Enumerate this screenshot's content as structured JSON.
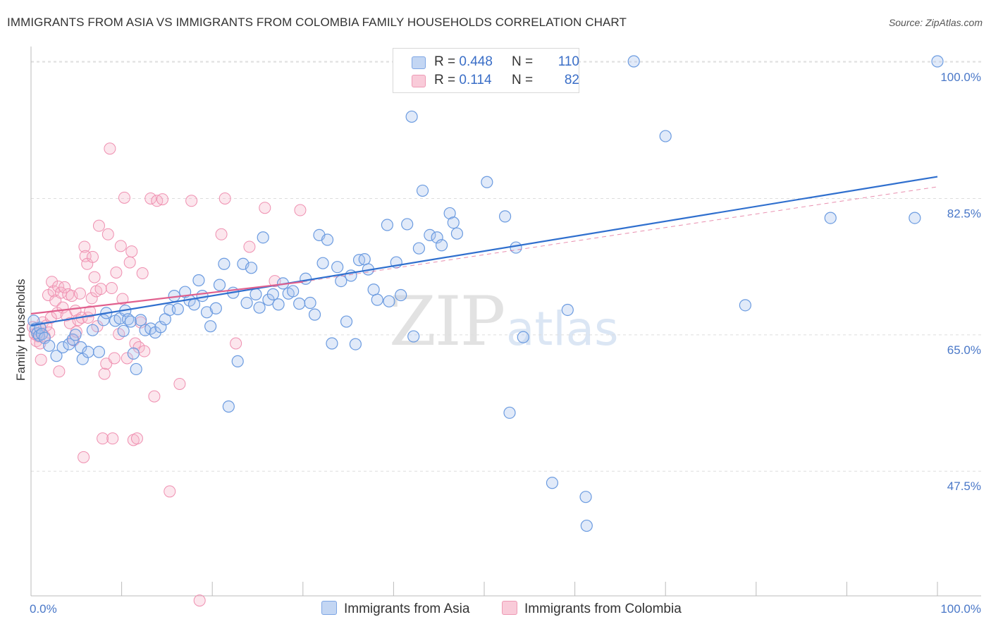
{
  "title": "IMMIGRANTS FROM ASIA VS IMMIGRANTS FROM COLOMBIA FAMILY HOUSEHOLDS CORRELATION CHART",
  "source": "Source: ZipAtlas.com",
  "watermark": {
    "part1": "ZIP",
    "part2": "atlas"
  },
  "legend": {
    "rows": [
      {
        "r_label": "R =",
        "r_value": "0.448",
        "n_label": "N =",
        "n_value": "110",
        "color": "#a9c4ee"
      },
      {
        "r_label": "R =",
        "r_value": "0.114",
        "n_label": "N =",
        "n_value": "82",
        "color": "#f6b6cb"
      }
    ]
  },
  "bottom_legend": [
    "Immigrants from Asia",
    "Immigrants from Colombia"
  ],
  "chart_data": {
    "type": "scatter",
    "title": "IMMIGRANTS FROM ASIA VS IMMIGRANTS FROM COLOMBIA FAMILY HOUSEHOLDS CORRELATION CHART",
    "xlabel": "",
    "ylabel": "Family Households",
    "xlim": [
      0,
      100
    ],
    "ylim": [
      31.5,
      102
    ],
    "x_tick_labels": [
      "0.0%",
      "100.0%"
    ],
    "y_ticks": [
      47.5,
      65.0,
      82.5,
      100.0
    ],
    "y_tick_labels": [
      "47.5%",
      "65.0%",
      "82.5%",
      "100.0%"
    ],
    "grid": true,
    "colors": {
      "asia": "#6b9be0",
      "colombia": "#ef8fb0",
      "asia_line": "#2f6fce",
      "colombia_line": "#e0608e"
    },
    "series": [
      {
        "name": "Immigrants from Asia",
        "r": 0.448,
        "n": 110,
        "trend": {
          "x": [
            0,
            100
          ],
          "y": [
            66.2,
            85.3
          ]
        },
        "points": [
          [
            0.3,
            66.8
          ],
          [
            0.5,
            65.8
          ],
          [
            0.7,
            65.2
          ],
          [
            0.9,
            64.9
          ],
          [
            1.0,
            65.9
          ],
          [
            1.2,
            65.1
          ],
          [
            1.5,
            64.6
          ],
          [
            2.0,
            63.6
          ],
          [
            2.8,
            62.3
          ],
          [
            3.5,
            63.4
          ],
          [
            4.2,
            63.8
          ],
          [
            4.6,
            64.4
          ],
          [
            4.9,
            65.0
          ],
          [
            5.5,
            63.4
          ],
          [
            5.7,
            61.9
          ],
          [
            6.3,
            62.8
          ],
          [
            6.8,
            65.6
          ],
          [
            7.5,
            62.8
          ],
          [
            8.0,
            66.9
          ],
          [
            8.3,
            67.8
          ],
          [
            9.3,
            66.8
          ],
          [
            9.8,
            67.1
          ],
          [
            10.2,
            65.5
          ],
          [
            10.4,
            68.1
          ],
          [
            10.7,
            67.0
          ],
          [
            11.0,
            66.7
          ],
          [
            11.3,
            62.6
          ],
          [
            11.6,
            60.6
          ],
          [
            12.1,
            66.9
          ],
          [
            12.6,
            65.6
          ],
          [
            13.2,
            65.8
          ],
          [
            13.7,
            65.3
          ],
          [
            14.3,
            66.0
          ],
          [
            14.8,
            67.0
          ],
          [
            15.3,
            68.2
          ],
          [
            15.8,
            70.0
          ],
          [
            16.2,
            68.3
          ],
          [
            17.0,
            70.5
          ],
          [
            17.5,
            69.4
          ],
          [
            18.0,
            68.9
          ],
          [
            18.5,
            72.0
          ],
          [
            18.9,
            70.0
          ],
          [
            19.4,
            67.9
          ],
          [
            19.8,
            66.1
          ],
          [
            20.4,
            68.4
          ],
          [
            20.8,
            71.4
          ],
          [
            21.3,
            74.1
          ],
          [
            21.8,
            55.8
          ],
          [
            22.3,
            70.4
          ],
          [
            22.8,
            61.6
          ],
          [
            23.4,
            74.1
          ],
          [
            23.8,
            69.1
          ],
          [
            24.3,
            73.6
          ],
          [
            24.8,
            70.2
          ],
          [
            25.2,
            68.5
          ],
          [
            25.6,
            77.5
          ],
          [
            26.2,
            69.5
          ],
          [
            26.7,
            70.2
          ],
          [
            27.3,
            68.9
          ],
          [
            27.8,
            71.6
          ],
          [
            28.4,
            70.3
          ],
          [
            28.9,
            70.6
          ],
          [
            29.6,
            69.0
          ],
          [
            30.3,
            72.2
          ],
          [
            30.8,
            69.1
          ],
          [
            31.3,
            67.6
          ],
          [
            31.8,
            77.8
          ],
          [
            32.2,
            74.2
          ],
          [
            32.7,
            77.2
          ],
          [
            33.2,
            63.9
          ],
          [
            33.8,
            73.7
          ],
          [
            34.2,
            71.9
          ],
          [
            34.8,
            66.7
          ],
          [
            35.3,
            72.6
          ],
          [
            35.8,
            63.8
          ],
          [
            36.2,
            74.6
          ],
          [
            36.8,
            74.7
          ],
          [
            37.2,
            73.4
          ],
          [
            37.8,
            70.8
          ],
          [
            38.2,
            69.5
          ],
          [
            39.3,
            79.1
          ],
          [
            39.5,
            69.3
          ],
          [
            40.3,
            74.3
          ],
          [
            40.8,
            70.1
          ],
          [
            41.5,
            79.2
          ],
          [
            42.0,
            93.0
          ],
          [
            42.2,
            64.8
          ],
          [
            42.8,
            76.1
          ],
          [
            43.2,
            83.5
          ],
          [
            44.0,
            77.8
          ],
          [
            44.8,
            77.5
          ],
          [
            45.3,
            76.5
          ],
          [
            46.2,
            80.6
          ],
          [
            46.6,
            79.4
          ],
          [
            47.0,
            78.0
          ],
          [
            50.3,
            84.6
          ],
          [
            52.3,
            80.2
          ],
          [
            52.8,
            55.0
          ],
          [
            53.5,
            76.2
          ],
          [
            54.3,
            64.7
          ],
          [
            57.5,
            46.0
          ],
          [
            59.2,
            68.2
          ],
          [
            61.2,
            44.2
          ],
          [
            61.3,
            40.5
          ],
          [
            66.5,
            100.1
          ],
          [
            70.0,
            90.5
          ],
          [
            78.8,
            68.8
          ],
          [
            88.2,
            80.0
          ],
          [
            100.0,
            100.1
          ],
          [
            97.5,
            80.0
          ]
        ]
      },
      {
        "name": "Immigrants from Colombia",
        "r": 0.114,
        "n": 82,
        "trend": {
          "x": [
            0,
            30
          ],
          "y": [
            67.7,
            71.8
          ]
        },
        "trend_dashed": {
          "x": [
            30,
            100
          ],
          "y": [
            71.8,
            84.0
          ]
        },
        "points": [
          [
            0.2,
            66.0
          ],
          [
            0.4,
            65.1
          ],
          [
            0.6,
            64.2
          ],
          [
            0.8,
            64.8
          ],
          [
            1.0,
            63.9
          ],
          [
            1.1,
            61.8
          ],
          [
            1.3,
            66.6
          ],
          [
            1.5,
            64.8
          ],
          [
            1.7,
            66.2
          ],
          [
            1.9,
            70.1
          ],
          [
            2.0,
            65.3
          ],
          [
            2.2,
            67.2
          ],
          [
            2.3,
            71.8
          ],
          [
            2.5,
            70.6
          ],
          [
            2.7,
            69.4
          ],
          [
            2.9,
            67.8
          ],
          [
            3.0,
            71.2
          ],
          [
            3.1,
            60.3
          ],
          [
            3.3,
            70.4
          ],
          [
            3.5,
            68.5
          ],
          [
            3.7,
            71.1
          ],
          [
            3.9,
            67.5
          ],
          [
            4.1,
            70.2
          ],
          [
            4.3,
            66.5
          ],
          [
            4.5,
            70.0
          ],
          [
            4.7,
            64.3
          ],
          [
            4.9,
            68.1
          ],
          [
            5.0,
            65.4
          ],
          [
            5.2,
            66.9
          ],
          [
            5.4,
            70.3
          ],
          [
            5.6,
            67.2
          ],
          [
            5.8,
            49.3
          ],
          [
            5.9,
            76.3
          ],
          [
            6.0,
            75.1
          ],
          [
            6.2,
            74.1
          ],
          [
            6.3,
            67.2
          ],
          [
            6.5,
            68.0
          ],
          [
            6.7,
            69.7
          ],
          [
            6.8,
            75.0
          ],
          [
            7.0,
            72.4
          ],
          [
            7.2,
            70.6
          ],
          [
            7.3,
            66.1
          ],
          [
            7.5,
            79.0
          ],
          [
            7.7,
            70.9
          ],
          [
            7.9,
            51.7
          ],
          [
            8.1,
            60.0
          ],
          [
            8.3,
            61.3
          ],
          [
            8.5,
            77.9
          ],
          [
            8.7,
            88.9
          ],
          [
            8.9,
            71.0
          ],
          [
            9.0,
            51.7
          ],
          [
            9.2,
            62.0
          ],
          [
            9.4,
            73.0
          ],
          [
            9.7,
            65.1
          ],
          [
            9.9,
            76.4
          ],
          [
            10.1,
            69.6
          ],
          [
            10.3,
            82.6
          ],
          [
            10.6,
            62.0
          ],
          [
            10.9,
            74.3
          ],
          [
            11.1,
            75.7
          ],
          [
            11.3,
            51.5
          ],
          [
            11.5,
            63.9
          ],
          [
            11.7,
            51.7
          ],
          [
            11.9,
            63.4
          ],
          [
            12.1,
            66.6
          ],
          [
            12.3,
            72.9
          ],
          [
            12.5,
            62.9
          ],
          [
            13.2,
            82.5
          ],
          [
            13.6,
            57.1
          ],
          [
            13.9,
            82.2
          ],
          [
            14.5,
            82.4
          ],
          [
            15.3,
            44.9
          ],
          [
            16.4,
            58.7
          ],
          [
            17.7,
            82.2
          ],
          [
            18.6,
            30.9
          ],
          [
            21.0,
            77.9
          ],
          [
            21.4,
            82.5
          ],
          [
            22.6,
            63.9
          ],
          [
            24.1,
            76.3
          ],
          [
            25.8,
            81.3
          ],
          [
            26.9,
            71.9
          ],
          [
            29.7,
            81.0
          ]
        ]
      }
    ]
  }
}
